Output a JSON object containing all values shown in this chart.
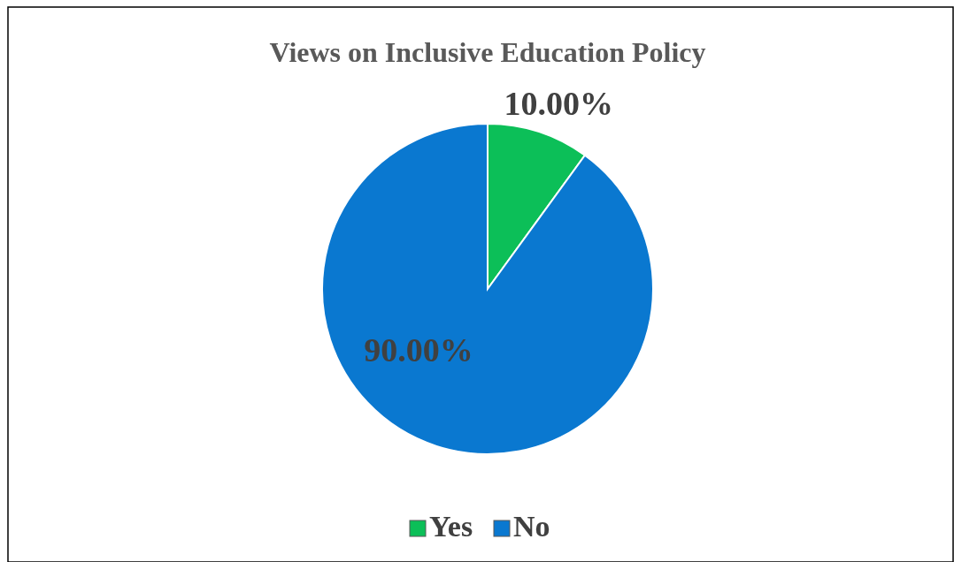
{
  "chart_data": {
    "type": "pie",
    "title": "Views on Inclusive Education Policy",
    "categories": [
      "Yes",
      "No"
    ],
    "values": [
      10,
      90
    ],
    "value_labels": [
      "10.00%",
      "90.00%"
    ],
    "colors": [
      "#0cbf58",
      "#0a78d0"
    ],
    "legend": "bottom"
  }
}
